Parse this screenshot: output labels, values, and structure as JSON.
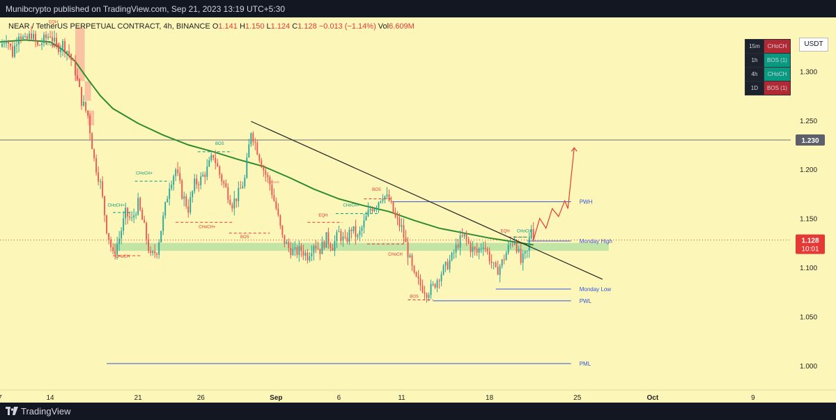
{
  "header": {
    "published_text": "Munibcrypto published on TradingView.com, Sep 21, 2023 13:19 UTC+5:30"
  },
  "footer": {
    "brand": "TradingView"
  },
  "legend": {
    "symbol": "NEAR / TetherUS PERPETUAL CONTRACT, 4h, BINANCE",
    "o_label": "O",
    "o_value": "1.141",
    "h_label": "H",
    "h_value": "1.150",
    "l_label": "L",
    "l_value": "1.124",
    "c_label": "C",
    "c_value": "1.128",
    "change": "−0.013 (−1.14%)",
    "vol_label": "Vol",
    "vol_value": "6.609M"
  },
  "currency_button": "USDT",
  "mtf_table": [
    {
      "tf": "15m",
      "status": "CHoCH",
      "color": "#b22833"
    },
    {
      "tf": "1h",
      "status": "BOS (1)",
      "color": "#089981"
    },
    {
      "tf": "4h",
      "status": "CHoCH",
      "color": "#089981"
    },
    {
      "tf": "1D",
      "status": "BOS (1)",
      "color": "#b22833"
    }
  ],
  "colors": {
    "background": "#fdf6b9",
    "up": "#26a69a",
    "down": "#ef5350",
    "ema": "#2e8b2e",
    "level": "#3355dd",
    "demand_zone": "#b7e0a0",
    "supply_block": "#f7b59b",
    "price_badge": "#e53935"
  },
  "chart_data": {
    "type": "candlestick",
    "symbol": "NEAR / TetherUS PERPETUAL CONTRACT",
    "timeframe": "4h",
    "exchange": "BINANCE",
    "last_price": 1.128,
    "countdown": "10:01",
    "highlight_price": 1.23,
    "y_axis": {
      "ticks": [
        1.0,
        1.05,
        1.1,
        1.15,
        1.2,
        1.25,
        1.3
      ],
      "ylim": [
        0.975,
        1.355
      ]
    },
    "x_axis": {
      "range": [
        "2023-08-10",
        "2023-10-12"
      ],
      "ticks": [
        {
          "date": "2023-08-10",
          "label": "7"
        },
        {
          "date": "2023-08-14",
          "label": "14"
        },
        {
          "date": "2023-08-21",
          "label": "21"
        },
        {
          "date": "2023-08-26",
          "label": "26"
        },
        {
          "date": "2023-09-01",
          "label": "Sep"
        },
        {
          "date": "2023-09-06",
          "label": "6"
        },
        {
          "date": "2023-09-11",
          "label": "11"
        },
        {
          "date": "2023-09-18",
          "label": "18"
        },
        {
          "date": "2023-09-25",
          "label": "25"
        },
        {
          "date": "2023-10-01",
          "label": "Oct"
        },
        {
          "date": "2023-10-09",
          "label": "9"
        }
      ]
    },
    "price_path": [
      [
        "2023-08-10 00:00",
        1.325
      ],
      [
        "2023-08-10 12:00",
        1.335
      ],
      [
        "2023-08-11 00:00",
        1.318
      ],
      [
        "2023-08-11 12:00",
        1.34
      ],
      [
        "2023-08-12 00:00",
        1.33
      ],
      [
        "2023-08-12 12:00",
        1.338
      ],
      [
        "2023-08-13 00:00",
        1.325
      ],
      [
        "2023-08-13 12:00",
        1.332
      ],
      [
        "2023-08-14 00:00",
        1.338
      ],
      [
        "2023-08-14 12:00",
        1.324
      ],
      [
        "2023-08-15 00:00",
        1.328
      ],
      [
        "2023-08-15 12:00",
        1.318
      ],
      [
        "2023-08-16 00:00",
        1.3
      ],
      [
        "2023-08-16 12:00",
        1.27
      ],
      [
        "2023-08-17 00:00",
        1.255
      ],
      [
        "2023-08-17 12:00",
        1.21
      ],
      [
        "2023-08-18 00:00",
        1.185
      ],
      [
        "2023-08-18 12:00",
        1.14
      ],
      [
        "2023-08-19 00:00",
        1.112
      ],
      [
        "2023-08-19 12:00",
        1.13
      ],
      [
        "2023-08-20 00:00",
        1.155
      ],
      [
        "2023-08-20 12:00",
        1.148
      ],
      [
        "2023-08-21 00:00",
        1.165
      ],
      [
        "2023-08-21 12:00",
        1.14
      ],
      [
        "2023-08-22 00:00",
        1.11
      ],
      [
        "2023-08-22 12:00",
        1.118
      ],
      [
        "2023-08-23 00:00",
        1.15
      ],
      [
        "2023-08-23 12:00",
        1.185
      ],
      [
        "2023-08-24 00:00",
        1.2
      ],
      [
        "2023-08-24 12:00",
        1.175
      ],
      [
        "2023-08-25 00:00",
        1.16
      ],
      [
        "2023-08-25 12:00",
        1.185
      ],
      [
        "2023-08-26 00:00",
        1.19
      ],
      [
        "2023-08-26 12:00",
        1.2
      ],
      [
        "2023-08-27 00:00",
        1.215
      ],
      [
        "2023-08-27 12:00",
        1.195
      ],
      [
        "2023-08-28 00:00",
        1.18
      ],
      [
        "2023-08-28 12:00",
        1.165
      ],
      [
        "2023-08-29 00:00",
        1.175
      ],
      [
        "2023-08-29 12:00",
        1.19
      ],
      [
        "2023-08-30 00:00",
        1.24
      ],
      [
        "2023-08-30 12:00",
        1.22
      ],
      [
        "2023-08-31 00:00",
        1.2
      ],
      [
        "2023-08-31 12:00",
        1.185
      ],
      [
        "2023-09-01 00:00",
        1.16
      ],
      [
        "2023-09-01 12:00",
        1.13
      ],
      [
        "2023-09-02 00:00",
        1.12
      ],
      [
        "2023-09-02 12:00",
        1.115
      ],
      [
        "2023-09-03 00:00",
        1.118
      ],
      [
        "2023-09-03 12:00",
        1.112
      ],
      [
        "2023-09-04 00:00",
        1.125
      ],
      [
        "2023-09-04 12:00",
        1.118
      ],
      [
        "2023-09-05 00:00",
        1.13
      ],
      [
        "2023-09-05 12:00",
        1.122
      ],
      [
        "2023-09-06 00:00",
        1.135
      ],
      [
        "2023-09-06 12:00",
        1.125
      ],
      [
        "2023-09-07 00:00",
        1.14
      ],
      [
        "2023-09-07 12:00",
        1.13
      ],
      [
        "2023-09-08 00:00",
        1.145
      ],
      [
        "2023-09-08 12:00",
        1.16
      ],
      [
        "2023-09-09 00:00",
        1.165
      ],
      [
        "2023-09-09 12:00",
        1.175
      ],
      [
        "2023-09-10 00:00",
        1.168
      ],
      [
        "2023-09-10 12:00",
        1.15
      ],
      [
        "2023-09-11 00:00",
        1.14
      ],
      [
        "2023-09-11 12:00",
        1.115
      ],
      [
        "2023-09-12 00:00",
        1.09
      ],
      [
        "2023-09-12 12:00",
        1.082
      ],
      [
        "2023-09-13 00:00",
        1.075
      ],
      [
        "2023-09-13 12:00",
        1.08
      ],
      [
        "2023-09-14 00:00",
        1.092
      ],
      [
        "2023-09-14 12:00",
        1.1
      ],
      [
        "2023-09-15 00:00",
        1.11
      ],
      [
        "2023-09-15 12:00",
        1.125
      ],
      [
        "2023-09-16 00:00",
        1.132
      ],
      [
        "2023-09-16 12:00",
        1.12
      ],
      [
        "2023-09-17 00:00",
        1.115
      ],
      [
        "2023-09-17 12:00",
        1.125
      ],
      [
        "2023-09-18 00:00",
        1.11
      ],
      [
        "2023-09-18 12:00",
        1.095
      ],
      [
        "2023-09-19 00:00",
        1.105
      ],
      [
        "2023-09-19 12:00",
        1.12
      ],
      [
        "2023-09-20 00:00",
        1.13
      ],
      [
        "2023-09-20 12:00",
        1.105
      ],
      [
        "2023-09-21 00:00",
        1.115
      ],
      [
        "2023-09-21 08:00",
        1.141
      ],
      [
        "2023-09-21 12:00",
        1.128
      ]
    ],
    "ema_path": [
      [
        "2023-08-10 00:00",
        1.33
      ],
      [
        "2023-08-12 00:00",
        1.332
      ],
      [
        "2023-08-14 00:00",
        1.33
      ],
      [
        "2023-08-15 00:00",
        1.322
      ],
      [
        "2023-08-16 00:00",
        1.31
      ],
      [
        "2023-08-17 00:00",
        1.292
      ],
      [
        "2023-08-18 00:00",
        1.275
      ],
      [
        "2023-08-19 00:00",
        1.262
      ],
      [
        "2023-08-21 00:00",
        1.247
      ],
      [
        "2023-08-23 00:00",
        1.235
      ],
      [
        "2023-08-25 00:00",
        1.225
      ],
      [
        "2023-08-27 00:00",
        1.218
      ],
      [
        "2023-08-29 00:00",
        1.21
      ],
      [
        "2023-08-31 00:00",
        1.203
      ],
      [
        "2023-09-02 00:00",
        1.192
      ],
      [
        "2023-09-04 00:00",
        1.18
      ],
      [
        "2023-09-06 00:00",
        1.17
      ],
      [
        "2023-09-08 00:00",
        1.163
      ],
      [
        "2023-09-10 00:00",
        1.157
      ],
      [
        "2023-09-12 00:00",
        1.148
      ],
      [
        "2023-09-14 00:00",
        1.14
      ],
      [
        "2023-09-16 00:00",
        1.135
      ],
      [
        "2023-09-18 00:00",
        1.13
      ],
      [
        "2023-09-20 00:00",
        1.126
      ],
      [
        "2023-09-21 12:00",
        1.123
      ]
    ],
    "trendline": [
      [
        "2023-08-30 00:00",
        1.249
      ],
      [
        "2023-09-27 00:00",
        1.088
      ]
    ],
    "demand_zone": {
      "from": "2023-08-19 00:00",
      "to": "2023-09-27 12:00",
      "top": 1.125,
      "bottom": 1.117
    },
    "supply_blocks": [
      {
        "from": "2023-08-16 00:00",
        "to": "2023-08-16 18:00",
        "top": 1.345,
        "bottom": 1.29
      },
      {
        "from": "2023-08-16 18:00",
        "to": "2023-08-17 06:00",
        "top": 1.29,
        "bottom": 1.27
      },
      {
        "from": "2023-08-17 00:00",
        "to": "2023-08-17 12:00",
        "top": 1.26,
        "bottom": 1.245
      },
      {
        "from": "2023-08-31 12:00",
        "to": "2023-09-01 06:00",
        "top": 1.188,
        "bottom": 1.186
      }
    ],
    "levels": [
      {
        "label": "PWH",
        "price": 1.167,
        "from": "2023-09-10 06:00",
        "to": "2023-09-24 12:00"
      },
      {
        "label": "Monday High",
        "price": 1.127,
        "from": "2023-09-21 00:00",
        "to": "2023-09-24 12:00"
      },
      {
        "label": "Monday Low",
        "price": 1.078,
        "from": "2023-09-18 12:00",
        "to": "2023-09-24 12:00"
      },
      {
        "label": "PWL",
        "price": 1.066,
        "from": "2023-09-13 12:00",
        "to": "2023-09-24 12:00"
      },
      {
        "label": "PML",
        "price": 1.002,
        "from": "2023-08-18 12:00",
        "to": "2023-09-24 12:00"
      }
    ],
    "structure_marks": [
      {
        "label": "EQH",
        "date": "2023-08-14 06:00",
        "price": 1.349,
        "color": "#e53935"
      },
      {
        "label": "EQL",
        "date": "2023-08-14 00:00",
        "price": 1.327,
        "color": "#089981"
      },
      {
        "label": "BOS",
        "date": "2023-08-14 12:00",
        "price": 1.325,
        "color": "#e53935"
      },
      {
        "label": "CHoCH+",
        "date": "2023-08-21 12:00",
        "price": 1.195,
        "color": "#089981"
      },
      {
        "label": "CHoCH+",
        "date": "2023-08-19 06:00",
        "price": 1.162,
        "color": "#089981"
      },
      {
        "label": "CHoCH",
        "date": "2023-08-19 18:00",
        "price": 1.11,
        "color": "#e53935"
      },
      {
        "label": "BOS",
        "date": "2023-08-27 12:00",
        "price": 1.225,
        "color": "#089981"
      },
      {
        "label": "CHoCH+",
        "date": "2023-08-26 12:00",
        "price": 1.14,
        "color": "#e53935"
      },
      {
        "label": "BOS",
        "date": "2023-08-29 12:00",
        "price": 1.13,
        "color": "#e53935"
      },
      {
        "label": "EQH",
        "date": "2023-09-04 18:00",
        "price": 1.152,
        "color": "#e53935"
      },
      {
        "label": "CHoCH+",
        "date": "2023-09-07 00:00",
        "price": 1.162,
        "color": "#089981"
      },
      {
        "label": "BOS",
        "date": "2023-09-09 00:00",
        "price": 1.178,
        "color": "#e53935"
      },
      {
        "label": "CHoCH",
        "date": "2023-09-10 12:00",
        "price": 1.112,
        "color": "#e53935"
      },
      {
        "label": "BOS",
        "date": "2023-09-12 00:00",
        "price": 1.069,
        "color": "#e53935"
      },
      {
        "label": "EQH",
        "date": "2023-09-19 06:00",
        "price": 1.136,
        "color": "#e53935"
      },
      {
        "label": "CHoCH",
        "date": "2023-09-20 18:00",
        "price": 1.136,
        "color": "#089981"
      }
    ],
    "structure_lines": [
      {
        "from": "2023-08-19 00:00",
        "to": "2023-08-21 06:00",
        "price": 1.112,
        "color": "#e53935"
      },
      {
        "from": "2023-08-19 00:00",
        "to": "2023-08-20 12:00",
        "price": 1.156,
        "color": "#089981"
      },
      {
        "from": "2023-08-20 18:00",
        "to": "2023-08-23 12:00",
        "price": 1.188,
        "color": "#089981"
      },
      {
        "from": "2023-08-24 00:00",
        "to": "2023-08-28 12:00",
        "price": 1.146,
        "color": "#e53935"
      },
      {
        "from": "2023-08-25 18:00",
        "to": "2023-08-28 12:00",
        "price": 1.218,
        "color": "#089981"
      },
      {
        "from": "2023-08-28 06:00",
        "to": "2023-08-31 12:00",
        "price": 1.135,
        "color": "#e53935"
      },
      {
        "from": "2023-09-03 12:00",
        "to": "2023-09-06 06:00",
        "price": 1.146,
        "color": "#e53935"
      },
      {
        "from": "2023-09-05 18:00",
        "to": "2023-09-09 06:00",
        "price": 1.155,
        "color": "#089981"
      },
      {
        "from": "2023-09-08 00:00",
        "to": "2023-09-10 06:00",
        "price": 1.17,
        "color": "#e53935"
      },
      {
        "from": "2023-09-08 06:00",
        "to": "2023-09-11 06:00",
        "price": 1.124,
        "color": "#e53935"
      },
      {
        "from": "2023-09-11 12:00",
        "to": "2023-09-13 12:00",
        "price": 1.067,
        "color": "#e53935"
      },
      {
        "from": "2023-09-19 12:00",
        "to": "2023-09-21 00:00",
        "price": 1.131,
        "color": "#e53935"
      },
      {
        "from": "2023-09-20 00:00",
        "to": "2023-09-21 06:00",
        "price": 1.131,
        "color": "#089981"
      }
    ],
    "projection_path": [
      [
        "2023-09-21 12:00",
        1.128
      ],
      [
        "2023-09-22 00:00",
        1.15
      ],
      [
        "2023-09-22 12:00",
        1.14
      ],
      [
        "2023-09-23 00:00",
        1.16
      ],
      [
        "2023-09-23 12:00",
        1.152
      ],
      [
        "2023-09-24 00:00",
        1.168
      ],
      [
        "2023-09-24 06:00",
        1.16
      ],
      [
        "2023-09-24 18:00",
        1.222
      ]
    ]
  }
}
